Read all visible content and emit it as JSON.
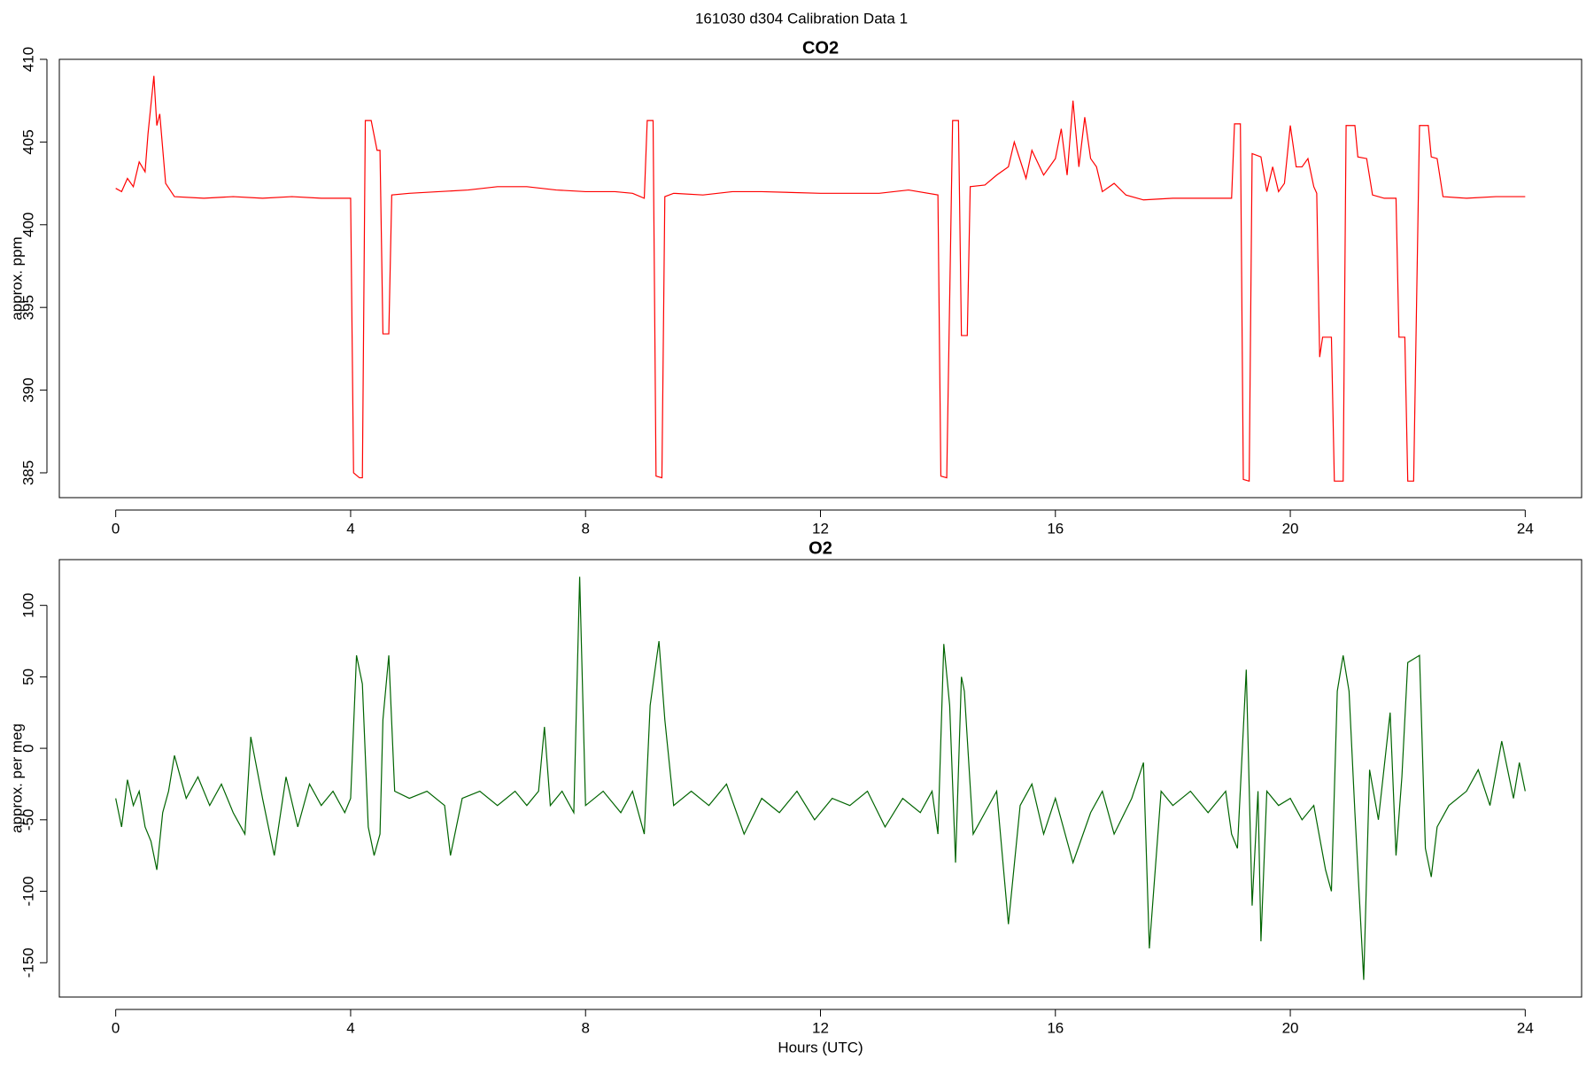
{
  "title": "161030   d304   Calibration Data 1",
  "chart_data": [
    {
      "type": "line",
      "title": "CO2",
      "ylabel": "approx. ppm",
      "xlim": [
        -0.96,
        24.96
      ],
      "xticks": [
        0,
        4,
        8,
        12,
        16,
        20,
        24
      ],
      "ylim": [
        383.5,
        410
      ],
      "yticks": [
        385,
        390,
        395,
        400,
        405,
        410
      ],
      "x": [
        0,
        0.1,
        0.2,
        0.3,
        0.4,
        0.5,
        0.55,
        0.65,
        0.7,
        0.75,
        0.85,
        1.0,
        1.5,
        2,
        2.5,
        3,
        3.5,
        4.0,
        4.05,
        4.15,
        4.2,
        4.25,
        4.35,
        4.45,
        4.5,
        4.55,
        4.65,
        4.7,
        5,
        5.5,
        6,
        6.5,
        7,
        7.5,
        8,
        8.5,
        8.8,
        9.0,
        9.05,
        9.15,
        9.2,
        9.3,
        9.35,
        9.5,
        10,
        10.5,
        11,
        12,
        13,
        13.5,
        14.0,
        14.05,
        14.15,
        14.25,
        14.35,
        14.4,
        14.5,
        14.55,
        14.8,
        15.0,
        15.2,
        15.3,
        15.5,
        15.6,
        15.8,
        16.0,
        16.1,
        16.2,
        16.3,
        16.4,
        16.5,
        16.6,
        16.7,
        16.8,
        17.0,
        17.2,
        17.5,
        18,
        18.5,
        19.0,
        19.05,
        19.15,
        19.2,
        19.3,
        19.35,
        19.5,
        19.6,
        19.7,
        19.8,
        19.9,
        20.0,
        20.1,
        20.2,
        20.3,
        20.4,
        20.45,
        20.5,
        20.55,
        20.7,
        20.75,
        20.9,
        20.95,
        21.1,
        21.15,
        21.3,
        21.4,
        21.6,
        21.8,
        21.85,
        21.95,
        22.0,
        22.1,
        22.2,
        22.35,
        22.4,
        22.5,
        22.6,
        23,
        23.5,
        24
      ],
      "series": [
        {
          "color": "#ff0000",
          "values": [
            402.2,
            402.0,
            402.8,
            402.3,
            403.8,
            403.2,
            405.5,
            409.0,
            406.0,
            406.7,
            402.5,
            401.7,
            401.6,
            401.7,
            401.6,
            401.7,
            401.6,
            401.6,
            385.0,
            384.7,
            384.7,
            406.3,
            406.3,
            404.5,
            404.5,
            393.4,
            393.4,
            401.8,
            401.9,
            402.0,
            402.1,
            402.3,
            402.3,
            402.1,
            402.0,
            402.0,
            401.9,
            401.6,
            406.3,
            406.3,
            384.8,
            384.7,
            401.7,
            401.9,
            401.8,
            402.0,
            402.0,
            401.9,
            401.9,
            402.1,
            401.8,
            384.8,
            384.7,
            406.3,
            406.3,
            393.3,
            393.3,
            402.3,
            402.4,
            403.0,
            403.5,
            405.0,
            402.8,
            404.5,
            403.0,
            404.0,
            405.8,
            403.0,
            407.5,
            403.5,
            406.5,
            404.0,
            403.5,
            402.0,
            402.5,
            401.8,
            401.5,
            401.6,
            401.6,
            401.6,
            406.1,
            406.1,
            384.6,
            384.5,
            404.3,
            404.1,
            402.0,
            403.5,
            402.0,
            402.5,
            406.0,
            403.5,
            403.5,
            404.0,
            402.3,
            401.9,
            392.0,
            393.2,
            393.2,
            384.5,
            384.5,
            406.0,
            406.0,
            404.1,
            404.0,
            401.8,
            401.6,
            401.6,
            393.2,
            393.2,
            384.5,
            384.5,
            406.0,
            406.0,
            404.1,
            404.0,
            401.7,
            401.6,
            401.7,
            401.7
          ]
        }
      ]
    },
    {
      "type": "line",
      "title": "O2",
      "ylabel": "approx. per meg",
      "xlabel": "Hours (UTC)",
      "xlim": [
        -0.96,
        24.96
      ],
      "xticks": [
        0,
        4,
        8,
        12,
        16,
        20,
        24
      ],
      "ylim": [
        -174,
        132
      ],
      "yticks": [
        -150,
        -100,
        -50,
        0,
        50,
        100
      ],
      "x": [
        0,
        0.1,
        0.2,
        0.3,
        0.4,
        0.5,
        0.6,
        0.7,
        0.8,
        0.9,
        1.0,
        1.2,
        1.4,
        1.6,
        1.8,
        2.0,
        2.2,
        2.3,
        2.5,
        2.7,
        2.9,
        3.1,
        3.3,
        3.5,
        3.7,
        3.9,
        4.0,
        4.1,
        4.2,
        4.3,
        4.4,
        4.5,
        4.55,
        4.65,
        4.75,
        5.0,
        5.3,
        5.6,
        5.7,
        5.9,
        6.2,
        6.5,
        6.8,
        7.0,
        7.2,
        7.3,
        7.4,
        7.6,
        7.8,
        7.9,
        8.0,
        8.3,
        8.6,
        8.8,
        9.0,
        9.1,
        9.25,
        9.35,
        9.5,
        9.8,
        10.1,
        10.4,
        10.7,
        11,
        11.3,
        11.6,
        11.9,
        12.2,
        12.5,
        12.8,
        13.1,
        13.4,
        13.7,
        13.9,
        14.0,
        14.1,
        14.2,
        14.3,
        14.4,
        14.45,
        14.6,
        14.8,
        15.0,
        15.2,
        15.4,
        15.6,
        15.8,
        16.0,
        16.3,
        16.6,
        16.8,
        17.0,
        17.3,
        17.5,
        17.6,
        17.8,
        18.0,
        18.3,
        18.6,
        18.9,
        19.0,
        19.1,
        19.25,
        19.35,
        19.45,
        19.5,
        19.6,
        19.8,
        20.0,
        20.2,
        20.4,
        20.6,
        20.7,
        20.8,
        20.9,
        21.0,
        21.1,
        21.25,
        21.35,
        21.5,
        21.7,
        21.8,
        21.9,
        22.0,
        22.2,
        22.3,
        22.4,
        22.5,
        22.7,
        23.0,
        23.2,
        23.4,
        23.6,
        23.8,
        23.9,
        24
      ],
      "series": [
        {
          "color": "#006400",
          "values": [
            -35,
            -55,
            -22,
            -40,
            -30,
            -55,
            -65,
            -85,
            -45,
            -30,
            -5,
            -35,
            -20,
            -40,
            -25,
            -45,
            -60,
            8,
            -35,
            -75,
            -20,
            -55,
            -25,
            -40,
            -30,
            -45,
            -35,
            65,
            45,
            -55,
            -75,
            -60,
            20,
            65,
            -30,
            -35,
            -30,
            -40,
            -75,
            -35,
            -30,
            -40,
            -30,
            -40,
            -30,
            15,
            -40,
            -30,
            -45,
            120,
            -40,
            -30,
            -45,
            -30,
            -60,
            30,
            75,
            20,
            -40,
            -30,
            -40,
            -25,
            -60,
            -35,
            -45,
            -30,
            -50,
            -35,
            -40,
            -30,
            -55,
            -35,
            -45,
            -30,
            -60,
            73,
            30,
            -80,
            50,
            40,
            -60,
            -45,
            -30,
            -123,
            -40,
            -25,
            -60,
            -35,
            -80,
            -45,
            -30,
            -60,
            -35,
            -10,
            -140,
            -30,
            -40,
            -30,
            -45,
            -30,
            -60,
            -70,
            55,
            -110,
            -30,
            -135,
            -30,
            -40,
            -35,
            -50,
            -40,
            -85,
            -100,
            40,
            65,
            40,
            -45,
            -162,
            -15,
            -50,
            25,
            -75,
            -20,
            60,
            65,
            -70,
            -90,
            -55,
            -40,
            -30,
            -15,
            -40,
            5,
            -35,
            -10,
            -30
          ]
        }
      ]
    }
  ]
}
